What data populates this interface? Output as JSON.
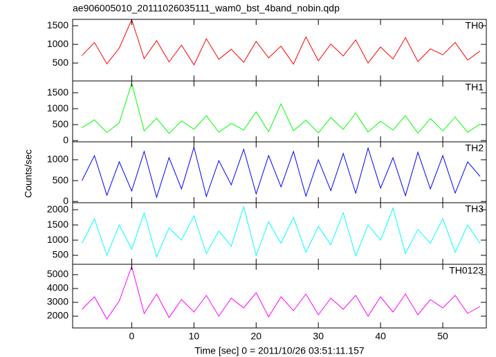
{
  "chart_data": [
    {
      "type": "line",
      "title": "ae906005010_20111026035111_wam0_bst_4band_nobin.qdp",
      "label": "TH0",
      "color": "#ff0000",
      "x": [
        -8,
        -6,
        -4,
        -2,
        0,
        2,
        4,
        6,
        8,
        10,
        12,
        14,
        16,
        18,
        20,
        22,
        24,
        26,
        28,
        30,
        32,
        34,
        36,
        38,
        40,
        42,
        44,
        46,
        48,
        50,
        52,
        54,
        56
      ],
      "values": [
        700,
        1050,
        480,
        900,
        1660,
        620,
        1100,
        530,
        980,
        450,
        1150,
        600,
        870,
        520,
        1080,
        640,
        950,
        470,
        1200,
        560,
        1010,
        690,
        1120,
        500,
        930,
        610,
        1180,
        540,
        880,
        720,
        1050,
        580,
        820
      ],
      "xlim": [
        -9.5,
        57
      ],
      "xticks": [
        0,
        10,
        20,
        30,
        40,
        50
      ],
      "ylim": [
        20,
        1670
      ],
      "yticks": [
        500,
        1000,
        1500
      ]
    },
    {
      "type": "line",
      "label": "TH1",
      "color": "#00ff00",
      "x": [
        -8,
        -6,
        -4,
        -2,
        0,
        2,
        4,
        6,
        8,
        10,
        12,
        14,
        16,
        18,
        20,
        22,
        24,
        26,
        28,
        30,
        32,
        34,
        36,
        38,
        40,
        42,
        44,
        46,
        48,
        50,
        52,
        54,
        56
      ],
      "values": [
        400,
        650,
        250,
        560,
        1800,
        300,
        700,
        220,
        620,
        350,
        780,
        260,
        540,
        330,
        900,
        280,
        1150,
        310,
        640,
        240,
        720,
        350,
        860,
        270,
        610,
        330,
        780,
        230,
        690,
        300,
        740,
        260,
        520
      ],
      "xlim": [
        -9.5,
        57
      ],
      "xticks": [
        0,
        10,
        20,
        30,
        40,
        50
      ],
      "ylim": [
        -40,
        1870
      ],
      "yticks": [
        0,
        500,
        1000,
        1500
      ]
    },
    {
      "type": "line",
      "label": "TH2",
      "ylabel": "Counts/sec",
      "color": "#0000ff",
      "x": [
        -8,
        -6,
        -4,
        -2,
        0,
        2,
        4,
        6,
        8,
        10,
        12,
        14,
        16,
        18,
        20,
        22,
        24,
        26,
        28,
        30,
        32,
        34,
        36,
        38,
        40,
        42,
        44,
        46,
        48,
        50,
        52,
        54,
        56
      ],
      "values": [
        500,
        1100,
        150,
        950,
        250,
        1200,
        100,
        1050,
        300,
        1300,
        120,
        980,
        400,
        1250,
        180,
        1100,
        350,
        1200,
        130,
        1000,
        260,
        1150,
        200,
        1280,
        320,
        1050,
        140,
        1180,
        300,
        1100,
        200,
        950,
        600
      ],
      "xlim": [
        -9.5,
        57
      ],
      "xticks": [
        0,
        10,
        20,
        30,
        40,
        50
      ],
      "ylim": [
        -30,
        1430
      ],
      "yticks": [
        0,
        500,
        1000
      ]
    },
    {
      "type": "line",
      "label": "TH3",
      "color": "#00ffff",
      "x": [
        -8,
        -6,
        -4,
        -2,
        0,
        2,
        4,
        6,
        8,
        10,
        12,
        14,
        16,
        18,
        20,
        22,
        24,
        26,
        28,
        30,
        32,
        34,
        36,
        38,
        40,
        42,
        44,
        46,
        48,
        50,
        52,
        54,
        56
      ],
      "values": [
        900,
        1700,
        500,
        1500,
        700,
        1900,
        450,
        1400,
        1000,
        1800,
        550,
        1300,
        800,
        2100,
        500,
        1600,
        900,
        1750,
        600,
        1450,
        850,
        1900,
        480,
        1500,
        1000,
        2050,
        560,
        1350,
        900,
        1700,
        600,
        1500,
        900
      ],
      "xlim": [
        -9.5,
        57
      ],
      "xticks": [
        0,
        10,
        20,
        30,
        40,
        50
      ],
      "ylim": [
        205,
        2230
      ],
      "yticks": [
        500,
        1000,
        1500,
        2000
      ]
    },
    {
      "type": "line",
      "label": "TH0123",
      "xlabel": "Time [sec] 0 = 2011/10/26 03:51:11.157",
      "color": "#ff00ff",
      "x": [
        -8,
        -6,
        -4,
        -2,
        0,
        2,
        4,
        6,
        8,
        10,
        12,
        14,
        16,
        18,
        20,
        22,
        24,
        26,
        28,
        30,
        32,
        34,
        36,
        38,
        40,
        42,
        44,
        46,
        48,
        50,
        52,
        54,
        56
      ],
      "values": [
        2500,
        3400,
        1800,
        3100,
        5600,
        2200,
        3600,
        1900,
        3200,
        2300,
        3500,
        2000,
        3300,
        2600,
        3700,
        1950,
        3400,
        2400,
        3600,
        2100,
        3300,
        2500,
        3500,
        2000,
        3400,
        2300,
        3600,
        2100,
        3200,
        2600,
        3500,
        2200,
        2700
      ],
      "xlim": [
        -9.5,
        57
      ],
      "xticks": [
        0,
        10,
        20,
        30,
        40,
        50
      ],
      "ylim": [
        1150,
        5750
      ],
      "yticks": [
        2000,
        3000,
        4000,
        5000
      ]
    }
  ]
}
